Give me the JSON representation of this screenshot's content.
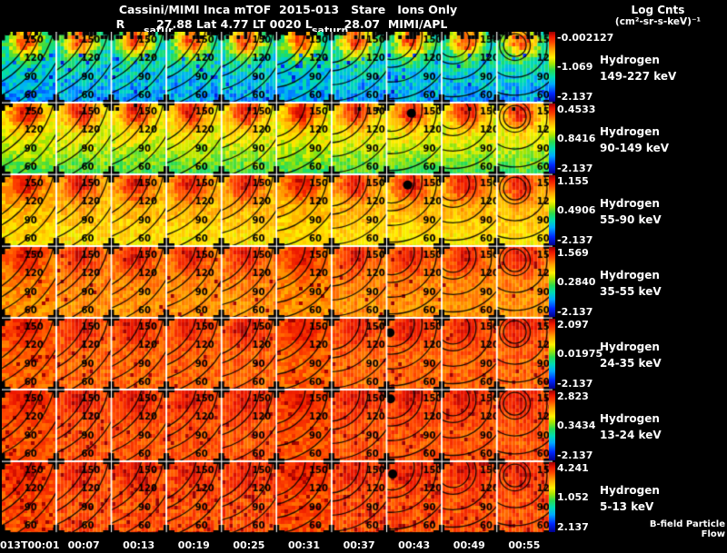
{
  "header": {
    "title": "Cassini/MIMI Inca mTOF  2015-013   Stare   Ions Only",
    "subtitle": "R        27.88 Lat 4.77 LT 0020 L        28.07  MIMI/APL",
    "units_line1": "Log Cnts",
    "units_line2": "(cm²-sr-s-keV)⁻¹",
    "annotation_left": "satur",
    "annotation_mid": "saturn"
  },
  "footer": {
    "bfield_label": "B-field Particle Flow"
  },
  "chart_data": {
    "type": "heatmap",
    "title": "Cassini/MIMI Inca mTOF 2015-013 Stare Ions Only",
    "units": "Log Cnts (cm2-sr-s-keV)-1",
    "day_of_year": "2015-013",
    "ephemeris": {
      "R": "27.88",
      "Lat": "4.77",
      "LT": "0020",
      "L": "28.07"
    },
    "time_labels": [
      "013T00:01",
      "00:07",
      "00:13",
      "00:19",
      "00:25",
      "00:31",
      "00:37",
      "00:43",
      "00:49",
      "00:55"
    ],
    "contour_levels": [
      150,
      120,
      90,
      60
    ],
    "grid": {
      "columns": 10,
      "rows": 7
    },
    "rows": [
      {
        "species": "Hydrogen",
        "energy": "149-227 keV",
        "scale_max": "-0.002127",
        "scale_mid": "-1.069",
        "scale_min": "-2.137"
      },
      {
        "species": "Hydrogen",
        "energy": "90-149 keV",
        "scale_max": "0.4533",
        "scale_mid": "0.8416",
        "scale_min": "-2.137"
      },
      {
        "species": "Hydrogen",
        "energy": "55-90 keV",
        "scale_max": "1.155",
        "scale_mid": "0.4906",
        "scale_min": "-2.137"
      },
      {
        "species": "Hydrogen",
        "energy": "35-55 keV",
        "scale_max": "1.569",
        "scale_mid": "0.2840",
        "scale_min": "-2.137"
      },
      {
        "species": "Hydrogen",
        "energy": "24-35 keV",
        "scale_max": "2.097",
        "scale_mid": "0.01975",
        "scale_min": "-2.137"
      },
      {
        "species": "Hydrogen",
        "energy": "13-24 keV",
        "scale_max": "2.823",
        "scale_mid": "0.3434",
        "scale_min": "-2.137"
      },
      {
        "species": "Hydrogen",
        "energy": "5-13 keV",
        "scale_max": "4.241",
        "scale_mid": "1.052",
        "scale_min": "2.137"
      }
    ],
    "render_hints": {
      "row_fields": [
        {
          "base": 0.33,
          "blob": 0.55,
          "noise": 0.1,
          "fade": 0.1,
          "blue_speckle": 0.06,
          "top_black": 0.35,
          "dark_speckle": 0
        },
        {
          "base": 0.6,
          "blob": 0.33,
          "noise": 0.07,
          "fade": 0.14,
          "blue_speckle": 0,
          "top_black": 0.05,
          "dark_speckle": 0
        },
        {
          "base": 0.7,
          "blob": 0.24,
          "noise": 0.06,
          "fade": 0.06,
          "blue_speckle": 0,
          "top_black": 0,
          "dark_speckle": 0
        },
        {
          "base": 0.78,
          "blob": 0.16,
          "noise": 0.05,
          "fade": 0.02,
          "blue_speckle": 0,
          "top_black": 0,
          "dark_speckle": 0.02
        },
        {
          "base": 0.82,
          "blob": 0.12,
          "noise": 0.05,
          "fade": 0,
          "blue_speckle": 0,
          "top_black": 0,
          "dark_speckle": 0.03
        },
        {
          "base": 0.84,
          "blob": 0.1,
          "noise": 0.05,
          "fade": 0,
          "blue_speckle": 0,
          "top_black": 0,
          "dark_speckle": 0.05
        },
        {
          "base": 0.85,
          "blob": 0.08,
          "noise": 0.06,
          "fade": 0,
          "blue_speckle": 0,
          "top_black": 0,
          "dark_speckle": 0.08
        }
      ],
      "bfield_markers": [
        {
          "row": 2,
          "col": 8,
          "fx": 0.45,
          "fy": 0.14
        },
        {
          "row": 3,
          "col": 8,
          "fx": 0.38,
          "fy": 0.14
        },
        {
          "row": 5,
          "col": 8,
          "fx": 0.05,
          "fy": 0.2
        },
        {
          "row": 6,
          "col": 8,
          "fx": 0.06,
          "fy": 0.12
        },
        {
          "row": 7,
          "col": 8,
          "fx": 0.1,
          "fy": 0.17
        }
      ],
      "palette_stops": [
        [
          0.0,
          0,
          0,
          140
        ],
        [
          0.12,
          0,
          40,
          255
        ],
        [
          0.25,
          0,
          170,
          255
        ],
        [
          0.35,
          0,
          220,
          180
        ],
        [
          0.45,
          40,
          220,
          80
        ],
        [
          0.55,
          170,
          230,
          0
        ],
        [
          0.63,
          255,
          240,
          0
        ],
        [
          0.75,
          255,
          160,
          0
        ],
        [
          0.85,
          255,
          70,
          0
        ],
        [
          0.93,
          235,
          20,
          0
        ],
        [
          1.0,
          150,
          0,
          0
        ]
      ]
    }
  }
}
